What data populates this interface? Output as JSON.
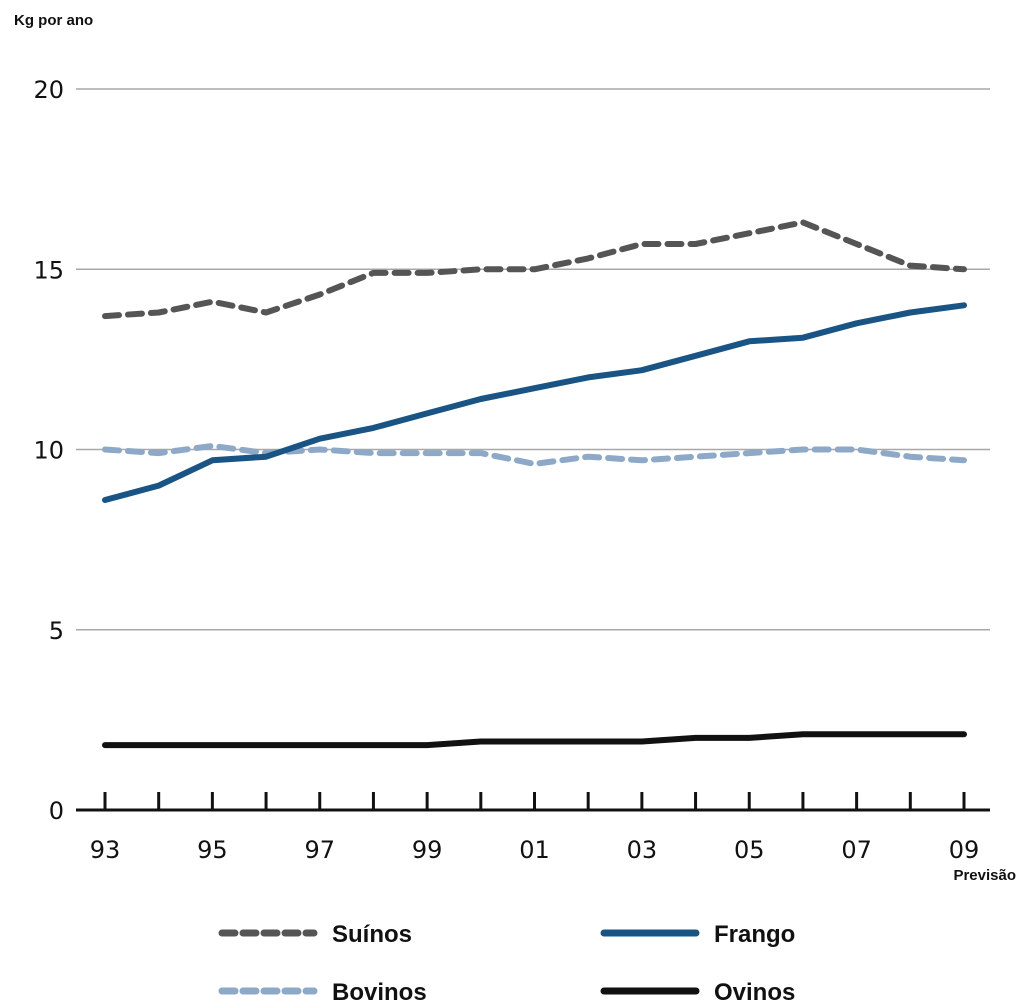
{
  "chart_data": {
    "type": "line",
    "ylabel": "Kg por ano",
    "ylim": [
      0,
      20
    ],
    "yticks": [
      "0",
      "5",
      "10",
      "15",
      "20"
    ],
    "grid": true,
    "x": [
      "93",
      "94",
      "95",
      "96",
      "97",
      "98",
      "99",
      "00",
      "01",
      "02",
      "03",
      "04",
      "05",
      "06",
      "07",
      "08",
      "09"
    ],
    "xtick_labels": [
      "93",
      "95",
      "97",
      "99",
      "01",
      "03",
      "05",
      "07",
      "09"
    ],
    "x_annotation": "Previsão",
    "legend_position": "bottom",
    "series": [
      {
        "name": "Suínos",
        "color": "#555555",
        "style": "dashed",
        "values": [
          13.7,
          13.8,
          14.1,
          13.8,
          14.3,
          14.9,
          14.9,
          15.0,
          15.0,
          15.3,
          15.7,
          15.7,
          16.0,
          16.3,
          15.7,
          15.1,
          15.0
        ]
      },
      {
        "name": "Frango",
        "color": "#1a5485",
        "style": "solid",
        "values": [
          8.6,
          9.0,
          9.7,
          9.8,
          10.3,
          10.6,
          11.0,
          11.4,
          11.7,
          12.0,
          12.2,
          12.6,
          13.0,
          13.1,
          13.5,
          13.8,
          14.0
        ]
      },
      {
        "name": "Bovinos",
        "color": "#8ea9c8",
        "style": "dashed",
        "values": [
          10.0,
          9.9,
          10.1,
          9.9,
          10.0,
          9.9,
          9.9,
          9.9,
          9.6,
          9.8,
          9.7,
          9.8,
          9.9,
          10.0,
          10.0,
          9.8,
          9.7
        ]
      },
      {
        "name": "Ovinos",
        "color": "#111111",
        "style": "solid",
        "values": [
          1.8,
          1.8,
          1.8,
          1.8,
          1.8,
          1.8,
          1.8,
          1.9,
          1.9,
          1.9,
          1.9,
          2.0,
          2.0,
          2.1,
          2.1,
          2.1,
          2.1
        ]
      }
    ]
  }
}
